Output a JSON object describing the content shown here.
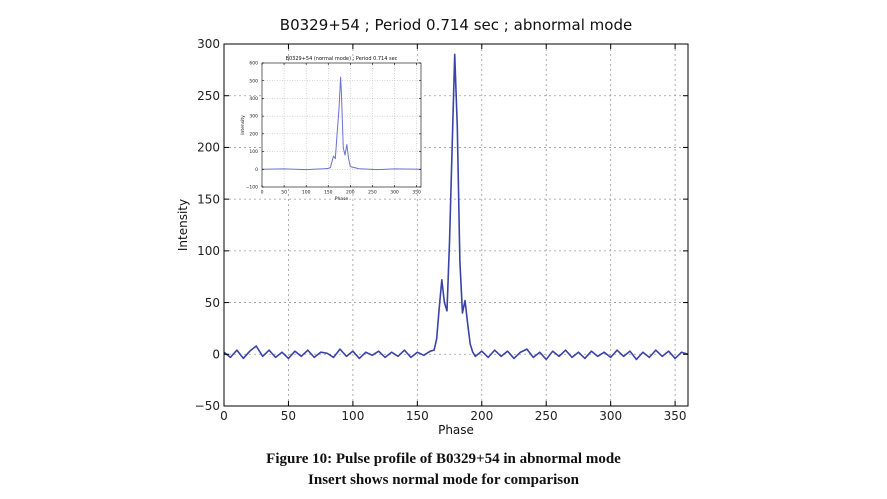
{
  "chart_data": [
    {
      "type": "line",
      "title": "B0329+54 ; Period 0.714 sec ; abnormal mode",
      "xlabel": "Phase",
      "ylabel": "Intensity",
      "xlim": [
        0,
        360
      ],
      "ylim": [
        -50,
        300
      ],
      "xticks": [
        0,
        50,
        100,
        150,
        200,
        250,
        300,
        350
      ],
      "yticks": [
        -50,
        0,
        50,
        100,
        150,
        200,
        250,
        300
      ],
      "grid": true,
      "line_color": "#3a43a8",
      "series": [
        {
          "name": "abnormal mode",
          "x": [
            0,
            5,
            10,
            15,
            20,
            25,
            30,
            35,
            40,
            45,
            50,
            55,
            60,
            65,
            70,
            75,
            80,
            85,
            90,
            95,
            100,
            105,
            110,
            115,
            120,
            125,
            130,
            135,
            140,
            145,
            150,
            155,
            160,
            163,
            165,
            167,
            169,
            171,
            173,
            175,
            177,
            179,
            181,
            183,
            185,
            187,
            189,
            191,
            193,
            195,
            200,
            205,
            210,
            215,
            220,
            225,
            230,
            235,
            240,
            245,
            250,
            255,
            260,
            265,
            270,
            275,
            280,
            285,
            290,
            295,
            300,
            305,
            310,
            315,
            320,
            325,
            330,
            335,
            340,
            345,
            350,
            355,
            360
          ],
          "values": [
            2,
            -3,
            4,
            -4,
            3,
            8,
            -2,
            4,
            -3,
            2,
            -4,
            3,
            -2,
            4,
            -3,
            2,
            1,
            -3,
            5,
            -2,
            3,
            -4,
            2,
            -1,
            3,
            -3,
            2,
            -2,
            4,
            -3,
            2,
            -1,
            3,
            4,
            15,
            45,
            72,
            50,
            42,
            110,
            200,
            290,
            220,
            90,
            40,
            52,
            30,
            10,
            2,
            -2,
            3,
            -3,
            4,
            -2,
            3,
            -4,
            2,
            5,
            -3,
            2,
            -5,
            3,
            -2,
            4,
            -3,
            2,
            -4,
            3,
            -2,
            2,
            -3,
            4,
            -2,
            3,
            -5,
            2,
            -3,
            4,
            -2,
            3,
            -4,
            2,
            0
          ]
        }
      ]
    },
    {
      "type": "line",
      "title": "B0329+54 (normal mode) ; Period 0.714 sec",
      "xlabel": "Phase",
      "ylabel": "Intensity",
      "xlim": [
        0,
        360
      ],
      "ylim": [
        -100,
        600
      ],
      "xticks": [
        0,
        50,
        100,
        150,
        200,
        250,
        300,
        350
      ],
      "yticks": [
        -100,
        0,
        100,
        200,
        300,
        400,
        500,
        600
      ],
      "grid": true,
      "line_color": "#6a72d0",
      "series": [
        {
          "name": "normal mode",
          "x": [
            0,
            50,
            100,
            140,
            150,
            155,
            158,
            162,
            166,
            170,
            174,
            178,
            180,
            184,
            188,
            192,
            196,
            200,
            220,
            260,
            300,
            360
          ],
          "values": [
            0,
            2,
            -2,
            3,
            5,
            10,
            40,
            75,
            60,
            200,
            330,
            520,
            420,
            120,
            80,
            140,
            60,
            15,
            3,
            -2,
            2,
            0
          ]
        }
      ]
    }
  ],
  "caption": {
    "line1": "Figure 10: Pulse profile of B0329+54 in abnormal mode",
    "line2": "Insert shows normal mode for comparison"
  }
}
